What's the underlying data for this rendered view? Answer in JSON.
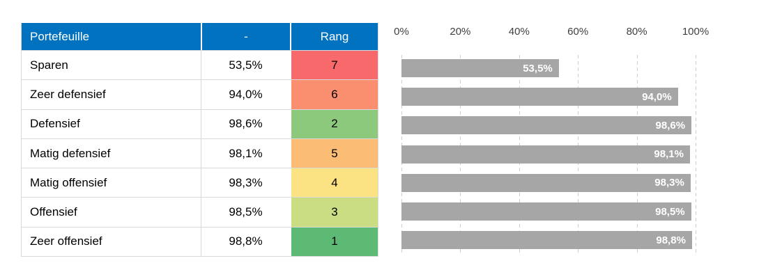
{
  "colors": {
    "header_bg": "#0072C0",
    "header_text": "#FFFFFF",
    "bar_fill": "#A6A6A6",
    "bar_label_text": "#FFFFFF",
    "axis_text": "#3F3F3F",
    "gridline": "#CFCFCF",
    "table_border": "#D9D9D9",
    "body_text": "#000000"
  },
  "table": {
    "headers": [
      {
        "label": "Portefeuille"
      },
      {
        "label": "-"
      },
      {
        "label": "Rang"
      }
    ],
    "rows": [
      {
        "portefeuille": "Sparen",
        "value": "53,5%",
        "rang": "7",
        "rang_color": "#F8696B"
      },
      {
        "portefeuille": "Zeer defensief",
        "value": "94,0%",
        "rang": "6",
        "rang_color": "#F98F6E"
      },
      {
        "portefeuille": "Defensief",
        "value": "98,6%",
        "rang": "2",
        "rang_color": "#8DC97D"
      },
      {
        "portefeuille": "Matig defensief",
        "value": "98,1%",
        "rang": "5",
        "rang_color": "#FBBC75"
      },
      {
        "portefeuille": "Matig offensief",
        "value": "98,3%",
        "rang": "4",
        "rang_color": "#FBE383"
      },
      {
        "portefeuille": "Offensief",
        "value": "98,5%",
        "rang": "3",
        "rang_color": "#CBDD82"
      },
      {
        "portefeuille": "Zeer offensief",
        "value": "98,8%",
        "rang": "1",
        "rang_color": "#5CBA74"
      }
    ]
  },
  "chart_data": {
    "type": "bar",
    "orientation": "horizontal",
    "categories": [
      "Sparen",
      "Zeer defensief",
      "Defensief",
      "Matig defensief",
      "Matig offensief",
      "Offensief",
      "Zeer offensief"
    ],
    "values": [
      53.5,
      94.0,
      98.6,
      98.1,
      98.3,
      98.5,
      98.8
    ],
    "data_labels": [
      "53,5%",
      "94,0%",
      "98,6%",
      "98,1%",
      "98,3%",
      "98,5%",
      "98,8%"
    ],
    "x_ticks": [
      "0%",
      "20%",
      "40%",
      "60%",
      "80%",
      "100%"
    ],
    "x_tick_values": [
      0,
      20,
      40,
      60,
      80,
      100
    ],
    "xlim": [
      0,
      100
    ],
    "axis_position": "top",
    "grid": "vertical-dashed",
    "legend": "none",
    "title": "",
    "xlabel": "",
    "ylabel": "",
    "bar_color": "#A6A6A6",
    "label_position": "inside-end"
  }
}
